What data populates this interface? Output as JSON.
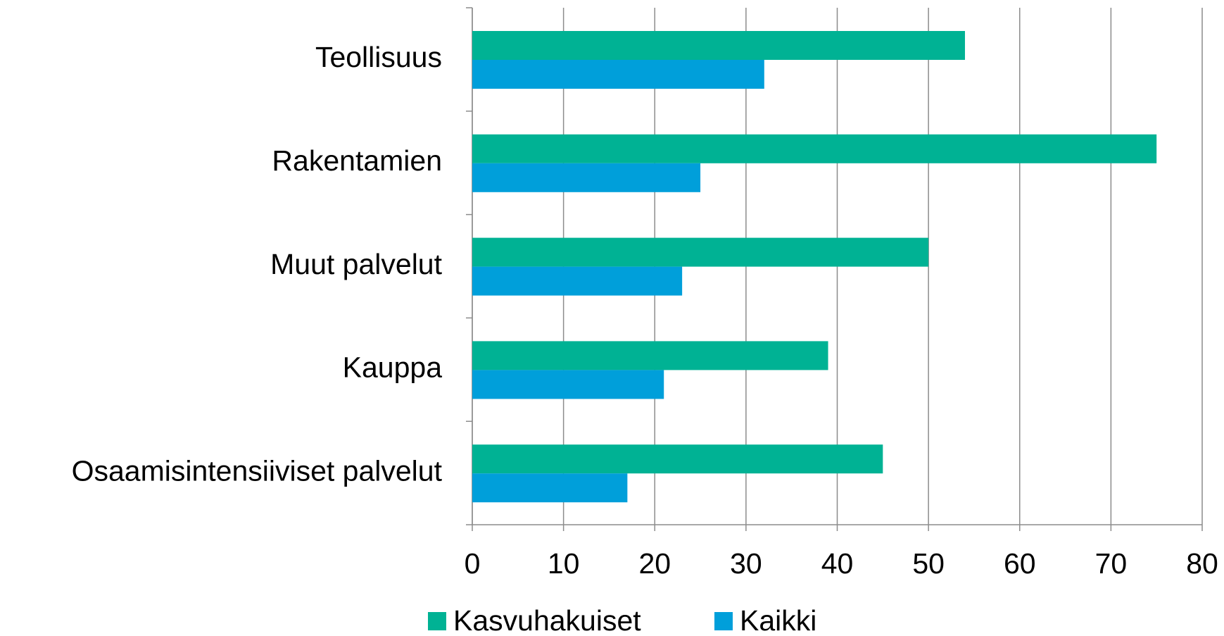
{
  "chart_data": {
    "type": "hbar",
    "categories": [
      "Teollisuus",
      "Rakentamien",
      "Muut palvelut",
      "Kauppa",
      "Osaamisintensiiviset palvelut"
    ],
    "series": [
      {
        "name": "Kasvuhakuiset",
        "color": "#00b294",
        "values": [
          54,
          75,
          50,
          39,
          45
        ]
      },
      {
        "name": "Kaikki",
        "color": "#009fda",
        "values": [
          32,
          25,
          23,
          21,
          17
        ]
      }
    ],
    "xlim": [
      0,
      80
    ],
    "xticks": [
      0,
      10,
      20,
      30,
      40,
      50,
      60,
      70,
      80
    ],
    "grid": true,
    "legend": "bottom"
  }
}
